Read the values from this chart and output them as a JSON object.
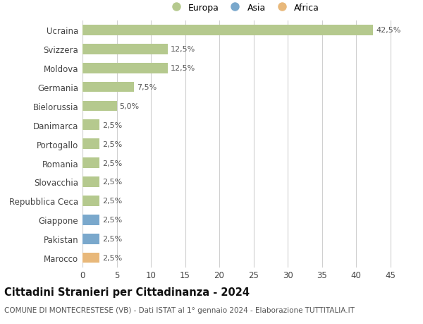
{
  "categories": [
    "Ucraina",
    "Svizzera",
    "Moldova",
    "Germania",
    "Bielorussia",
    "Danimarca",
    "Portogallo",
    "Romania",
    "Slovacchia",
    "Repubblica Ceca",
    "Giappone",
    "Pakistan",
    "Marocco"
  ],
  "values": [
    42.5,
    12.5,
    12.5,
    7.5,
    5.0,
    2.5,
    2.5,
    2.5,
    2.5,
    2.5,
    2.5,
    2.5,
    2.5
  ],
  "labels": [
    "42,5%",
    "12,5%",
    "12,5%",
    "7,5%",
    "5,0%",
    "2,5%",
    "2,5%",
    "2,5%",
    "2,5%",
    "2,5%",
    "2,5%",
    "2,5%",
    "2,5%"
  ],
  "continents": [
    "Europa",
    "Europa",
    "Europa",
    "Europa",
    "Europa",
    "Europa",
    "Europa",
    "Europa",
    "Europa",
    "Europa",
    "Asia",
    "Asia",
    "Africa"
  ],
  "colors": {
    "Europa": "#b5c98e",
    "Asia": "#7aa8cc",
    "Africa": "#e8b87a"
  },
  "legend_items": [
    "Europa",
    "Asia",
    "Africa"
  ],
  "xlim": [
    0,
    47
  ],
  "xticks": [
    0,
    5,
    10,
    15,
    20,
    25,
    30,
    35,
    40,
    45
  ],
  "title": "Cittadini Stranieri per Cittadinanza - 2024",
  "subtitle": "COMUNE DI MONTECRESTESE (VB) - Dati ISTAT al 1° gennaio 2024 - Elaborazione TUTTITALIA.IT",
  "bg_color": "#ffffff",
  "grid_color": "#d0d0d0",
  "bar_height": 0.55,
  "label_fontsize": 8.0,
  "tick_fontsize": 8.5,
  "title_fontsize": 10.5,
  "subtitle_fontsize": 7.5,
  "legend_fontsize": 9.0
}
